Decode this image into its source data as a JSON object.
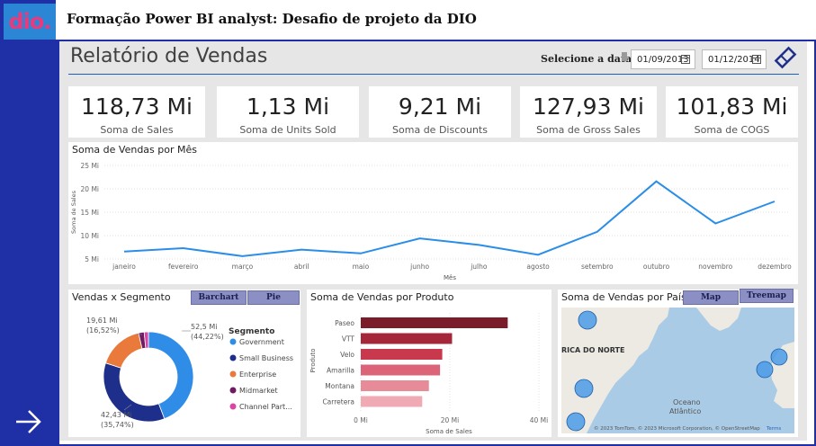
{
  "header": {
    "title": "Formação Power BI analyst: Desafio de projeto da DIO",
    "logo": "dio."
  },
  "report": {
    "title": "Relatório de Vendas",
    "date_filter": {
      "label": "Selecione a data:",
      "start": "01/09/2013",
      "end": "01/12/2014"
    }
  },
  "kpis": [
    {
      "value": "118,73 Mi",
      "label": "Soma de  Sales"
    },
    {
      "value": "1,13 Mi",
      "label": "Soma de Units Sold"
    },
    {
      "value": "9,21 Mi",
      "label": "Soma de Discounts"
    },
    {
      "value": "127,93 Mi",
      "label": "Soma de Gross Sales"
    },
    {
      "value": "101,83 Mi",
      "label": "Soma de COGS"
    }
  ],
  "line_chart": {
    "title": "Soma de Vendas por Mês",
    "xlabel": "Mês",
    "ylabel": "Soma de Sales",
    "yticks": [
      "25 Mi",
      "20 Mi",
      "15 Mi",
      "10 Mi",
      "5 Mi"
    ],
    "color": "#2a8ee8"
  },
  "donut": {
    "title": "Vendas x Segmento",
    "buttons": [
      "Barchart",
      "Pie"
    ],
    "legend_title": "Segmento",
    "labels": {
      "a": "52,5 Mi",
      "a2": "(44,22%)",
      "b": "19,61 Mi",
      "b2": "(16,52%)",
      "c": "42,43 Mi",
      "c2": "(35,74%)"
    }
  },
  "product_chart": {
    "title": "Soma de Vendas por Produto",
    "xlabel": "Soma de Sales",
    "ylabel": "Produto",
    "xticks": [
      "0 Mi",
      "20 Mi",
      "40 Mi"
    ]
  },
  "map": {
    "title": "Soma de Vendas por País",
    "buttons": [
      "Map",
      "Treemap"
    ],
    "labels": {
      "region": "RICA DO NORTE",
      "ocean1": "Oceano",
      "ocean2": "Atlântico"
    },
    "attribution": "© 2023 TomTom, © 2023 Microsoft Corporation, © OpenStreetMap",
    "terms": "Terms"
  },
  "chart_data": [
    {
      "type": "line",
      "title": "Soma de Vendas por Mês",
      "xlabel": "Mês",
      "ylabel": "Soma de Sales",
      "x": [
        "janeiro",
        "fevereiro",
        "março",
        "abril",
        "maio",
        "junho",
        "julho",
        "agosto",
        "setembro",
        "outubro",
        "novembro",
        "dezembro"
      ],
      "values": [
        6.6,
        7.3,
        5.6,
        7.0,
        6.2,
        9.4,
        8.0,
        5.9,
        10.8,
        21.6,
        12.6,
        17.3
      ],
      "ylim": [
        5,
        25
      ],
      "unit": "Mi"
    },
    {
      "type": "pie",
      "title": "Vendas x Segmento",
      "categories": [
        "Government",
        "Small Business",
        "Enterprise",
        "Midmarket",
        "Channel Part..."
      ],
      "values": [
        52.5,
        42.43,
        19.61,
        2.38,
        1.81
      ],
      "colors": [
        "#2f8de8",
        "#1d2f8a",
        "#ea7a3c",
        "#6e1b63",
        "#d946a3"
      ]
    },
    {
      "type": "bar",
      "title": "Soma de Vendas por Produto",
      "xlabel": "Soma de Sales",
      "ylabel": "Produto",
      "categories": [
        "Paseo",
        "VTT",
        "Velo",
        "Amarilla",
        "Montana",
        "Carretera"
      ],
      "values": [
        33.0,
        20.5,
        18.3,
        17.8,
        15.3,
        13.8
      ],
      "xlim": [
        0,
        40
      ],
      "colors": [
        "#7b1c2b",
        "#a4283a",
        "#c8394e",
        "#dc6478",
        "#e88b98",
        "#f0aab4"
      ]
    }
  ]
}
